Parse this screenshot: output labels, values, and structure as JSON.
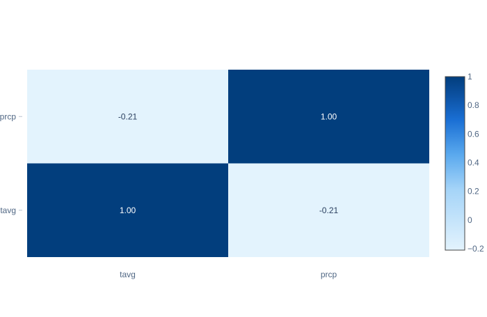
{
  "chart_data": {
    "type": "heatmap",
    "x_categories": [
      "tavg",
      "prcp"
    ],
    "y_categories": [
      "tavg",
      "prcp"
    ],
    "z": [
      [
        1.0,
        -0.21
      ],
      [
        -0.21,
        1.0
      ]
    ],
    "cell_text": [
      [
        "1.00",
        "-0.21"
      ],
      [
        "-0.21",
        "1.00"
      ]
    ],
    "colorscale": {
      "min": -0.21,
      "max": 1.0,
      "stops": [
        [
          0.0,
          "#e3f3fd"
        ],
        [
          0.35,
          "#a5d4f8"
        ],
        [
          0.55,
          "#5aa9ee"
        ],
        [
          0.75,
          "#1a6fd4"
        ],
        [
          0.9,
          "#0b4f9e"
        ],
        [
          1.0,
          "#023e7d"
        ]
      ]
    },
    "colorbar_ticks": [
      1,
      0.8,
      0.6,
      0.4,
      0.2,
      0,
      -0.2
    ],
    "colorbar_tick_labels": [
      "1",
      "0.8",
      "0.6",
      "0.4",
      "0.2",
      "0",
      "−0.2"
    ],
    "title": "",
    "xlabel": "",
    "ylabel": ""
  }
}
